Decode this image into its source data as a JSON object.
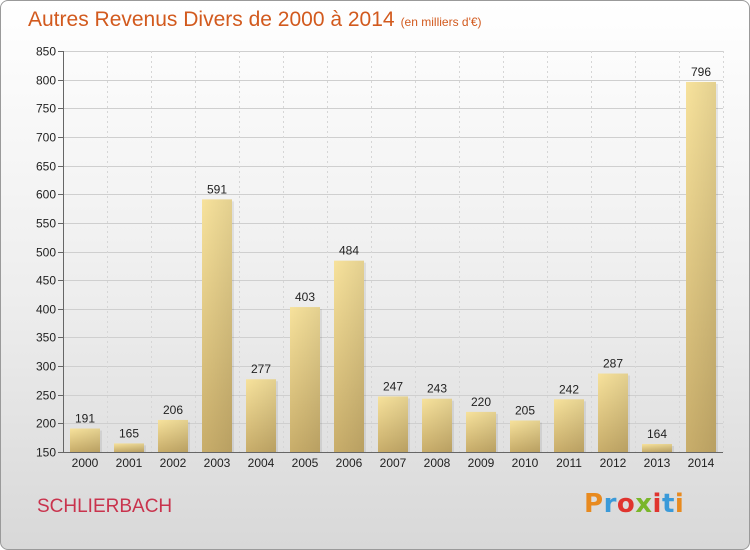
{
  "header": {
    "title": "Autres Revenus Divers de 2000 à 2014",
    "unit_note": "(en milliers d'€)"
  },
  "footer": {
    "place": "SCHLIERBACH",
    "logo_text": "Proxiti"
  },
  "logo_letter_colors": [
    "#e88a1f",
    "#3a9ad9",
    "#e0342f",
    "#7ab62a",
    "#e0342f",
    "#3a9ad9",
    "#e88a1f"
  ],
  "chart_data": {
    "type": "bar",
    "title": "Autres Revenus Divers de 2000 à 2014",
    "subtitle": "(en milliers d'€)",
    "xlabel": "",
    "ylabel": "",
    "categories": [
      "2000",
      "2001",
      "2002",
      "2003",
      "2004",
      "2005",
      "2006",
      "2007",
      "2008",
      "2009",
      "2010",
      "2011",
      "2012",
      "2013",
      "2014"
    ],
    "values": [
      191,
      165,
      206,
      591,
      277,
      403,
      484,
      247,
      243,
      220,
      205,
      242,
      287,
      164,
      796
    ],
    "ylim": [
      150,
      850
    ],
    "yticks": [
      150,
      200,
      250,
      300,
      350,
      400,
      450,
      500,
      550,
      600,
      650,
      700,
      750,
      800,
      850
    ],
    "grid": true,
    "bar_color": "#e8d08a"
  }
}
